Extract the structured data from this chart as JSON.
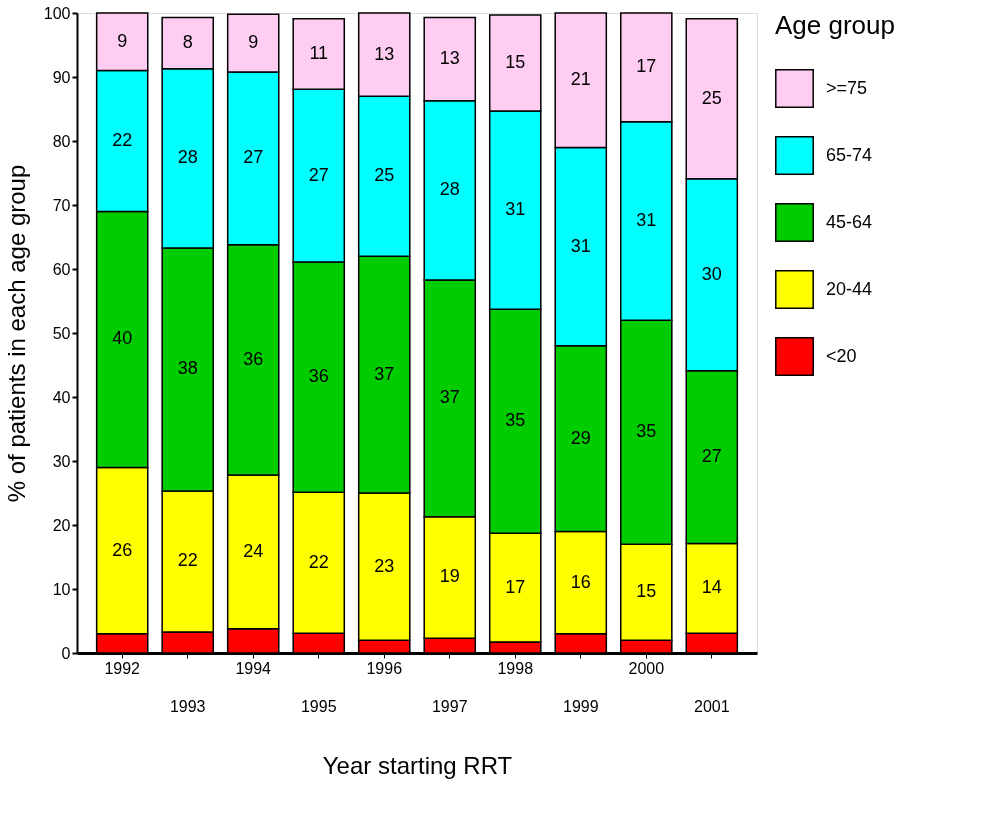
{
  "chart_data": {
    "type": "bar",
    "stacked": true,
    "xlabel": "Year starting RRT",
    "ylabel": "% of patients in each age group",
    "legend_title": "Age group",
    "legend": "right",
    "grid": false,
    "categories": [
      "1992",
      "1993",
      "1994",
      "1995",
      "1996",
      "1997",
      "1998",
      "1999",
      "2000",
      "2001"
    ],
    "ylim": [
      0,
      100
    ],
    "yticks": [
      0,
      10,
      20,
      30,
      40,
      50,
      60,
      70,
      80,
      90,
      100
    ],
    "series": [
      {
        "name": "<20",
        "color": "#ff0000",
        "values": [
          3.0,
          3.3,
          3.8,
          3.1,
          2.0,
          2.3,
          1.7,
          3.0,
          2.0,
          3.1
        ],
        "value_labels": [
          null,
          null,
          null,
          null,
          null,
          null,
          null,
          null,
          null,
          null
        ]
      },
      {
        "name": "20-44",
        "color": "#ffff00",
        "values": [
          26,
          22,
          24,
          22,
          23,
          19,
          17,
          16,
          15,
          14
        ],
        "value_labels": [
          "26",
          "22",
          "24",
          "22",
          "23",
          "19",
          "17",
          "16",
          "15",
          "14"
        ]
      },
      {
        "name": "45-64",
        "color": "#00cc00",
        "values": [
          40,
          38,
          36,
          36,
          37,
          37,
          35,
          29,
          35,
          27
        ],
        "value_labels": [
          "40",
          "38",
          "36",
          "36",
          "37",
          "37",
          "35",
          "29",
          "35",
          "27"
        ]
      },
      {
        "name": "65-74",
        "color": "#00ffff",
        "values": [
          22,
          28,
          27,
          27,
          25,
          28,
          31,
          31,
          31,
          30
        ],
        "value_labels": [
          "22",
          "28",
          "27",
          "27",
          "25",
          "28",
          "31",
          "31",
          "31",
          "30"
        ]
      },
      {
        "name": ">=75",
        "color": "#ffccf2",
        "values": [
          9,
          8,
          9,
          11,
          13,
          13,
          15,
          21,
          17,
          25
        ],
        "value_labels": [
          "9",
          "8",
          "9",
          "11",
          "13",
          "13",
          "15",
          "21",
          "17",
          "25"
        ]
      }
    ]
  }
}
